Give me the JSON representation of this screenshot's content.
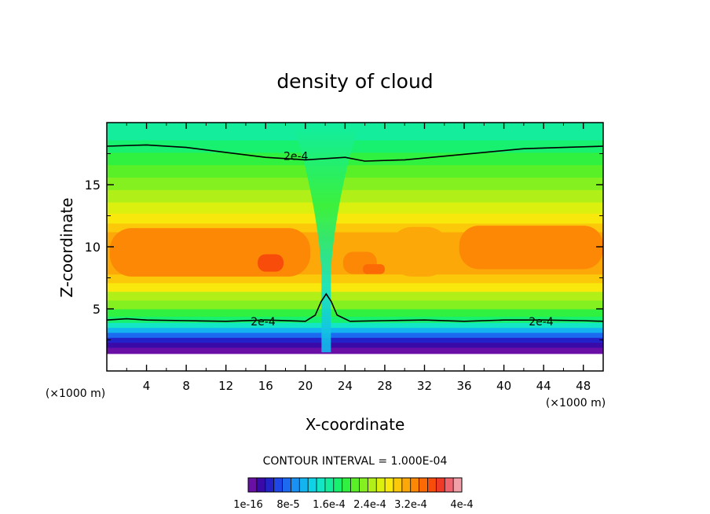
{
  "chart_data": {
    "type": "heatmap",
    "title": "density of cloud",
    "xlabel": "X-coordinate",
    "ylabel": "Z-coordinate",
    "x_unit_left": "(×1000 m)",
    "x_unit_right": "(×1000 m)",
    "xlim": [
      0,
      50
    ],
    "ylim": [
      0,
      20
    ],
    "x_ticks": [
      4,
      8,
      12,
      16,
      20,
      24,
      28,
      32,
      36,
      40,
      44,
      48
    ],
    "y_ticks": [
      5,
      10,
      15
    ],
    "contour_label_text": "2e-4",
    "contour_interval_label": "CONTOUR INTERVAL = 1.000E-04",
    "colorbar": {
      "colors": [
        "#6a0fa6",
        "#3a0aa8",
        "#2222c8",
        "#1f46e6",
        "#1c6af0",
        "#1890f4",
        "#14b4f0",
        "#10d2e6",
        "#12e6c4",
        "#14ee9c",
        "#18f070",
        "#30f040",
        "#5af028",
        "#84f020",
        "#b0f018",
        "#dcf010",
        "#f8e80c",
        "#fcc80a",
        "#fca808",
        "#fc8806",
        "#fc6a06",
        "#f84c0a",
        "#f03a28",
        "#f06470",
        "#f0a0a8"
      ],
      "tick_labels": [
        "1e-16",
        "8e-5",
        "1.6e-4",
        "2.4e-4",
        "3.2e-4",
        "4e-4"
      ]
    },
    "contour_lines": [
      {
        "level": "2e-4",
        "label_x": 14.5,
        "label_z": 4.0,
        "points": [
          [
            0,
            4.1
          ],
          [
            2,
            4.2
          ],
          [
            4,
            4.1
          ],
          [
            8,
            4.05
          ],
          [
            12,
            4.0
          ],
          [
            16,
            4.1
          ],
          [
            20,
            4.0
          ],
          [
            21,
            4.5
          ],
          [
            21.6,
            5.6
          ],
          [
            22.1,
            6.2
          ],
          [
            22.6,
            5.6
          ],
          [
            23.2,
            4.5
          ],
          [
            24.5,
            4.0
          ],
          [
            28,
            4.05
          ],
          [
            32,
            4.1
          ],
          [
            36,
            4.0
          ],
          [
            40,
            4.1
          ],
          [
            44,
            4.1
          ],
          [
            48,
            4.05
          ],
          [
            50,
            4.0
          ]
        ]
      },
      {
        "level": "2e-4",
        "label_x": 42.5,
        "label_z": 4.0,
        "points": []
      },
      {
        "level": "2e-4",
        "label_x": 17.8,
        "label_z": 17.3,
        "points": [
          [
            0,
            18.1
          ],
          [
            4,
            18.2
          ],
          [
            8,
            18.0
          ],
          [
            12,
            17.6
          ],
          [
            16,
            17.2
          ],
          [
            20,
            17.0
          ],
          [
            24,
            17.2
          ],
          [
            26,
            16.9
          ],
          [
            30,
            17.0
          ],
          [
            34,
            17.3
          ],
          [
            38,
            17.6
          ],
          [
            42,
            17.9
          ],
          [
            46,
            18.0
          ],
          [
            50,
            18.1
          ]
        ]
      }
    ],
    "field_bands": [
      {
        "zmin": 0.0,
        "zmax": 1.4,
        "color": "#ffffff"
      },
      {
        "zmin": 1.4,
        "zmax": 1.9,
        "color": "#6a0fa6"
      },
      {
        "zmin": 1.9,
        "zmax": 2.3,
        "color": "#3a0aa8"
      },
      {
        "zmin": 2.3,
        "zmax": 2.7,
        "color": "#2222c8"
      },
      {
        "zmin": 2.7,
        "zmax": 3.1,
        "color": "#1c6af0"
      },
      {
        "zmin": 3.1,
        "zmax": 3.5,
        "color": "#14b4f0"
      },
      {
        "zmin": 3.5,
        "zmax": 3.9,
        "color": "#12e6c4"
      },
      {
        "zmin": 3.9,
        "zmax": 4.4,
        "color": "#18f070"
      },
      {
        "zmin": 4.4,
        "zmax": 5.0,
        "color": "#30f040"
      },
      {
        "zmin": 5.0,
        "zmax": 5.7,
        "color": "#84f020"
      },
      {
        "zmin": 5.7,
        "zmax": 6.4,
        "color": "#b0f018"
      },
      {
        "zmin": 6.4,
        "zmax": 7.1,
        "color": "#f8e80c"
      },
      {
        "zmin": 7.1,
        "zmax": 7.8,
        "color": "#fcc80a"
      },
      {
        "zmin": 7.8,
        "zmax": 11.2,
        "color": "#fca808"
      },
      {
        "zmin": 11.2,
        "zmax": 11.9,
        "color": "#fcc80a"
      },
      {
        "zmin": 11.9,
        "zmax": 12.7,
        "color": "#f8e80c"
      },
      {
        "zmin": 12.7,
        "zmax": 13.6,
        "color": "#dcf010"
      },
      {
        "zmin": 13.6,
        "zmax": 14.6,
        "color": "#b0f018"
      },
      {
        "zmin": 14.6,
        "zmax": 15.6,
        "color": "#84f020"
      },
      {
        "zmin": 15.6,
        "zmax": 16.6,
        "color": "#5af028"
      },
      {
        "zmin": 16.6,
        "zmax": 17.6,
        "color": "#30f040"
      },
      {
        "zmin": 17.6,
        "zmax": 18.6,
        "color": "#18f070"
      },
      {
        "zmin": 18.6,
        "zmax": 20.0,
        "color": "#14ee9c"
      }
    ],
    "features": [
      {
        "kind": "core",
        "xmin": 0.3,
        "xmax": 20.5,
        "zmin": 7.6,
        "zmax": 11.5,
        "color": "#fc8806"
      },
      {
        "kind": "core",
        "xmin": 35.5,
        "xmax": 50.0,
        "zmin": 8.2,
        "zmax": 11.7,
        "color": "#fc8806"
      },
      {
        "kind": "core",
        "xmin": 23.8,
        "xmax": 27.2,
        "zmin": 7.8,
        "zmax": 9.6,
        "color": "#fc8806"
      },
      {
        "kind": "core",
        "xmin": 25.8,
        "xmax": 28.0,
        "zmin": 7.8,
        "zmax": 8.6,
        "color": "#fc6a06"
      },
      {
        "kind": "core",
        "xmin": 15.2,
        "xmax": 17.8,
        "zmin": 8.0,
        "zmax": 9.4,
        "color": "#f84c0a"
      },
      {
        "kind": "core",
        "xmin": 28.5,
        "xmax": 34.5,
        "zmin": 7.6,
        "zmax": 11.6,
        "color": "#fca808"
      },
      {
        "kind": "column",
        "xmin": 20.6,
        "xmax": 23.6,
        "zmin": 1.5,
        "zmax": 19.6
      }
    ]
  }
}
